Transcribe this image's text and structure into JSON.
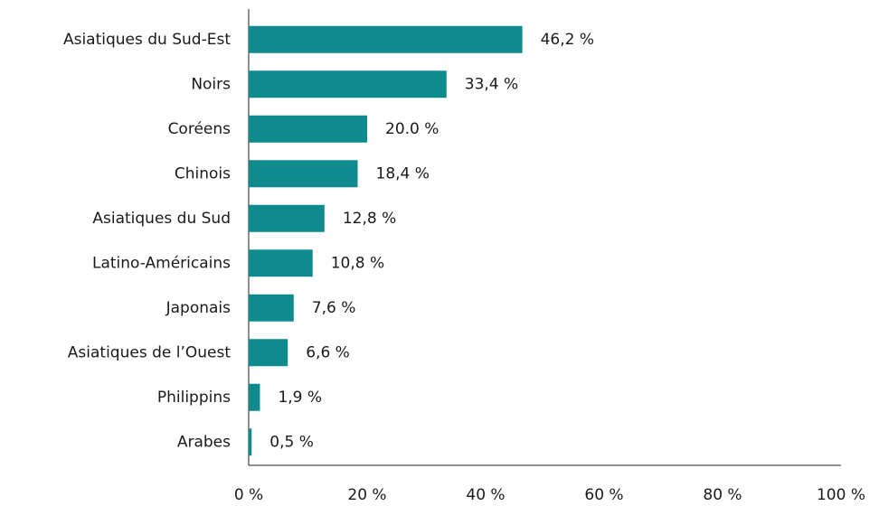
{
  "chart_data": {
    "type": "bar",
    "orientation": "horizontal",
    "categories": [
      "Asiatiques du Sud-Est",
      "Noirs",
      "Coréens",
      "Chinois",
      "Asiatiques du Sud",
      "Latino-Américains",
      "Japonais",
      "Asiatiques de l’Ouest",
      "Philippins",
      "Arabes"
    ],
    "values": [
      46.2,
      33.4,
      20.0,
      18.4,
      12.8,
      10.8,
      7.6,
      6.6,
      1.9,
      0.5
    ],
    "value_labels": [
      "46,2 %",
      "33,4 %",
      "20.0 %",
      "18,4 %",
      "12,8 %",
      "10,8 %",
      "7,6 %",
      "6,6 %",
      "1,9 %",
      "0,5 %"
    ],
    "color": "#0f8b8d",
    "xlim": [
      0,
      100
    ],
    "xticks": [
      {
        "value": 0,
        "label": "0 %"
      },
      {
        "value": 20,
        "label": "20 %"
      },
      {
        "value": 40,
        "label": "40 %"
      },
      {
        "value": 60,
        "label": "60 %"
      },
      {
        "value": 80,
        "label": "80 %"
      },
      {
        "value": 100,
        "label": "100 %"
      }
    ],
    "grid": false
  }
}
